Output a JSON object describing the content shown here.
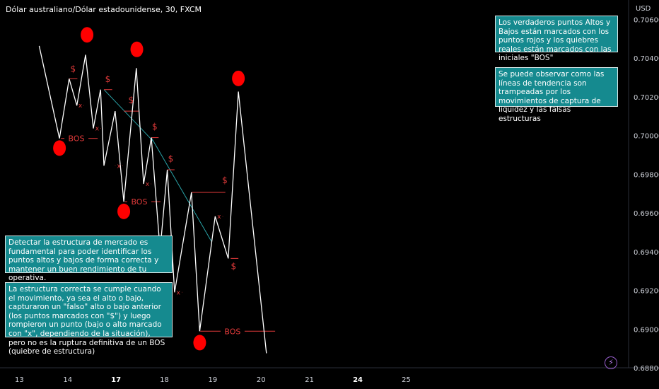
{
  "header": {
    "title": "Dólar australiano/Dólar estadounidense, 30, FXCM"
  },
  "colors": {
    "background": "#000000",
    "price_line": "#ffffff",
    "level": "#e23a3a",
    "trendline": "#2aa3a8",
    "marker": "#ff0000",
    "note_bg": "#158a8f"
  },
  "notes": {
    "top1": "Los verdaderos puntos Altos y Bajos están marcados con los puntos rojos y los quiebres reales están marcados con las iniciales \"BOS\"",
    "top2": "Se puede observar como las líneas de tendencia son trampeadas por los movimientos de captura de liquidez y las falsas estructuras",
    "left1": "Detectar la estructura de mercado es fundamental para poder identificar los puntos altos y bajos de forma correcta y mantener un buen rendimiento de tu operativa.",
    "left2": "La estructura correcta se cumple cuando el movimiento, ya sea el alto o bajo, capturaron un \"falso\" alto o bajo anterior (los puntos marcados con \"$\") y luego rompieron un punto (bajo o alto marcado con \"x\", dependiendo de la situación), pero no es la ruptura definitiva de un BOS (quiebre de estructura)"
  },
  "icons": {
    "bolt": "lightning-icon"
  },
  "chart_data": {
    "type": "line",
    "title": "Dólar australiano/Dólar estadounidense, 30, FXCM",
    "currency": "USD",
    "ylim": [
      0.688,
      0.707
    ],
    "xlim": [
      12.6,
      25.6
    ],
    "y_ticks": [
      "0.70600",
      "0.70400",
      "0.70200",
      "0.70000",
      "0.69800",
      "0.69600",
      "0.69400",
      "0.69200",
      "0.69000",
      "0.68800"
    ],
    "x_ticks": [
      {
        "x": 13,
        "label": "13",
        "bold": false
      },
      {
        "x": 14,
        "label": "14",
        "bold": false
      },
      {
        "x": 15,
        "label": "17",
        "bold": true
      },
      {
        "x": 16,
        "label": "18",
        "bold": false
      },
      {
        "x": 17,
        "label": "19",
        "bold": false
      },
      {
        "x": 18,
        "label": "20",
        "bold": false
      },
      {
        "x": 19,
        "label": "21",
        "bold": false
      },
      {
        "x": 20,
        "label": "24",
        "bold": true
      },
      {
        "x": 21,
        "label": "25",
        "bold": false
      }
    ],
    "series": [
      {
        "x": [
          13.41,
          13.83,
          14.03,
          14.19,
          14.37,
          14.53,
          14.68,
          14.75,
          14.98,
          15.16,
          15.42,
          15.57,
          15.73,
          15.91,
          16.06,
          16.21,
          16.56,
          16.73,
          17.05,
          17.32,
          17.53,
          18.11,
          18.27,
          18.58,
          18.65,
          18.96,
          19.78
        ],
        "y": [
          0.70463,
          0.69985,
          0.70293,
          0.70155,
          0.70417,
          0.70037,
          0.70237,
          0.69844,
          0.70126,
          0.69658,
          0.70348,
          0.6975,
          0.69989,
          0.69407,
          0.69823,
          0.6919,
          0.69706,
          0.68989,
          0.69582,
          0.69365,
          0.70227,
          0.68875,
          null,
          null,
          null,
          null,
          null
        ]
      }
    ],
    "levels": [
      {
        "x1": 14.03,
        "x2": 14.2,
        "y": 0.70293
      },
      {
        "x1": 14.75,
        "x2": 14.92,
        "y": 0.70237
      },
      {
        "x1": 15.16,
        "x2": 15.48,
        "y": 0.70126
      },
      {
        "x1": 15.73,
        "x2": 15.88,
        "y": 0.69989
      },
      {
        "x1": 16.06,
        "x2": 16.21,
        "y": 0.69823
      },
      {
        "x1": 16.56,
        "x2": 17.26,
        "y": 0.69706
      },
      {
        "x1": 17.37,
        "x2": 17.53,
        "y": 0.69365
      }
    ],
    "bos": [
      {
        "x1": 13.86,
        "x2": 14.62,
        "y": 0.69985,
        "label": "BOS",
        "lx": 14.18
      },
      {
        "x1": 15.18,
        "x2": 15.92,
        "y": 0.69658,
        "label": "BOS",
        "lx": 15.48
      },
      {
        "x1": 16.74,
        "x2": 18.29,
        "y": 0.68989,
        "label": "BOS",
        "lx": 17.41
      }
    ],
    "dollar_labels": [
      {
        "x": 14.11,
        "y": 0.7033,
        "label": "$"
      },
      {
        "x": 14.83,
        "y": 0.70277,
        "label": "$"
      },
      {
        "x": 15.31,
        "y": 0.70169,
        "label": "$"
      },
      {
        "x": 15.8,
        "y": 0.70032,
        "label": "$"
      },
      {
        "x": 16.13,
        "y": 0.69866,
        "label": "$"
      },
      {
        "x": 17.25,
        "y": 0.69753,
        "label": "$"
      },
      {
        "x": 17.43,
        "y": 0.6931,
        "label": "$"
      }
    ],
    "x_marks": [
      {
        "x1": 14.18,
        "x2": 14.34,
        "y": 0.70155,
        "label": "x",
        "lx": 14.26
      },
      {
        "x1": 14.53,
        "x2": 14.69,
        "y": 0.70037,
        "label": "x",
        "lx": 14.61
      },
      {
        "x1": 14.98,
        "x2": 15.14,
        "y": 0.69844,
        "label": "x",
        "lx": 15.06
      },
      {
        "x1": 15.57,
        "x2": 15.73,
        "y": 0.6975,
        "label": "x",
        "lx": 15.65
      },
      {
        "x1": 15.91,
        "x2": 16.07,
        "y": 0.69407,
        "label": "x",
        "lx": 15.99
      },
      {
        "x1": 16.21,
        "x2": 16.37,
        "y": 0.6919,
        "label": "x",
        "lx": 16.29
      },
      {
        "x1": 17.05,
        "x2": 17.21,
        "y": 0.69582,
        "label": "x",
        "lx": 17.13
      }
    ],
    "trendlines": [
      {
        "x1": 14.75,
        "x2": 15.77,
        "y1": 0.70237,
        "y2": 0.6997
      },
      {
        "x1": 15.73,
        "x2": 16.98,
        "y1": 0.69989,
        "y2": 0.6945
      }
    ],
    "markers": [
      {
        "x": 13.83,
        "y": 0.69935
      },
      {
        "x": 14.4,
        "y": 0.7052
      },
      {
        "x": 15.16,
        "y": 0.69608
      },
      {
        "x": 15.43,
        "y": 0.70445
      },
      {
        "x": 16.73,
        "y": 0.6893
      },
      {
        "x": 17.53,
        "y": 0.70295
      }
    ]
  }
}
